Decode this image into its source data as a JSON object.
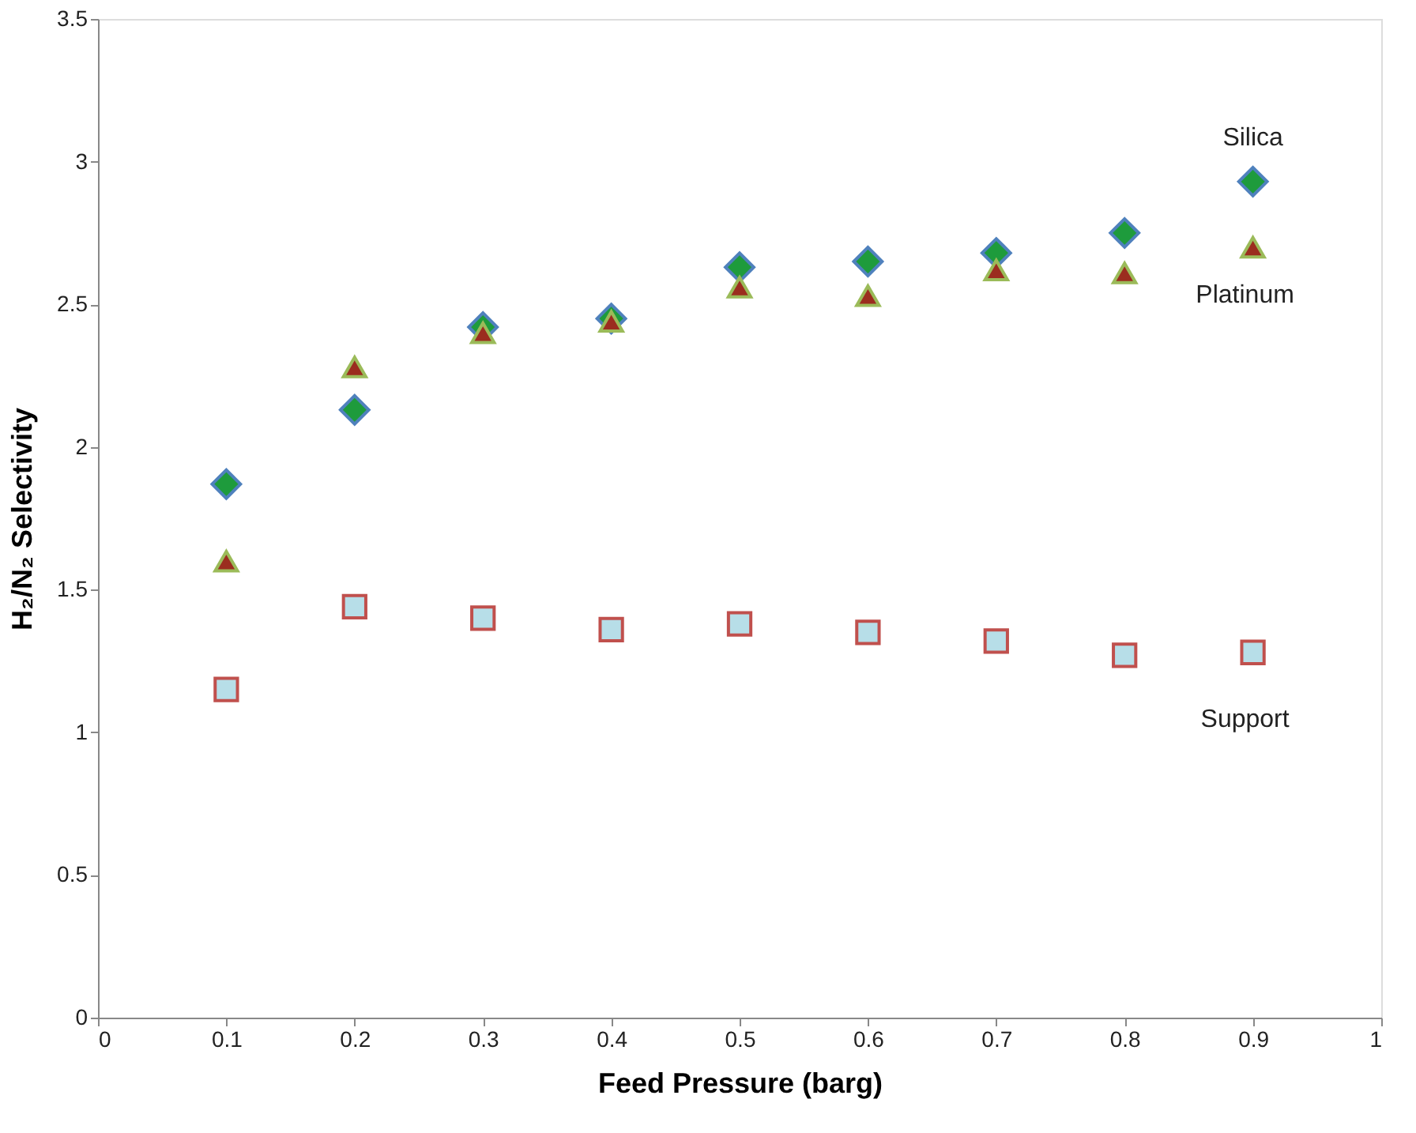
{
  "chart_data": {
    "type": "scatter",
    "xlabel": "Feed Pressure (barg)",
    "ylabel": "H₂/N₂ Selectivity",
    "x": [
      0.1,
      0.2,
      0.3,
      0.4,
      0.5,
      0.6,
      0.7,
      0.8,
      0.9
    ],
    "series": [
      {
        "name": "Silica",
        "color": "#1e9b3c",
        "marker": "diamond",
        "values": [
          1.87,
          2.13,
          2.42,
          2.45,
          2.63,
          2.65,
          2.68,
          2.75,
          2.93
        ]
      },
      {
        "name": "Platinum",
        "color": "#9b2d1f",
        "marker": "triangle",
        "values": [
          1.6,
          2.28,
          2.4,
          2.44,
          2.56,
          2.53,
          2.62,
          2.61,
          2.7
        ]
      },
      {
        "name": "Support",
        "color": "#b7dee8",
        "marker": "square",
        "values": [
          1.15,
          1.44,
          1.4,
          1.36,
          1.38,
          1.35,
          1.32,
          1.27,
          1.28
        ]
      }
    ],
    "xlim": [
      0,
      1
    ],
    "xticks": [
      0,
      0.1,
      0.2,
      0.3,
      0.4,
      0.5,
      0.6,
      0.7,
      0.8,
      0.9,
      1
    ],
    "ylim": [
      0,
      3.5
    ],
    "yticks": [
      0,
      0.5,
      1,
      1.5,
      2,
      2.5,
      3,
      3.5
    ],
    "grid": false,
    "legend": false
  }
}
